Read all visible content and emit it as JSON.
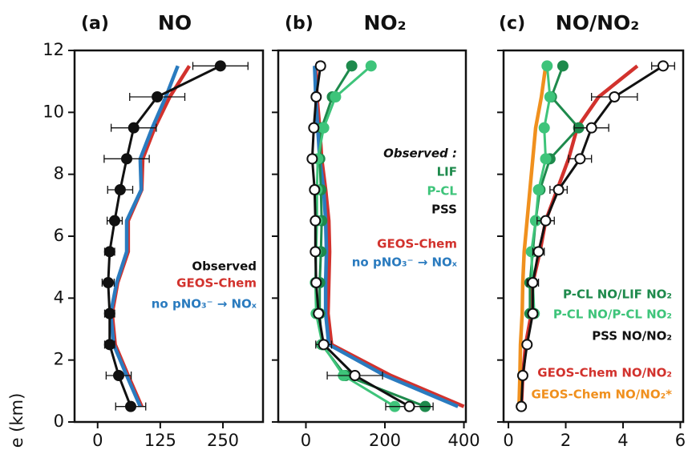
{
  "chart_data": [
    {
      "type": "line",
      "panel_label": "(a)",
      "title": "NO",
      "ylabel": "e (km)",
      "y": [
        0.5,
        1.5,
        2.5,
        3.5,
        4.5,
        5.5,
        6.5,
        7.5,
        8.5,
        9.5,
        10.5,
        11.5
      ],
      "xlim": [
        -46,
        330
      ],
      "xticks": [
        0,
        125,
        250
      ],
      "ylim": [
        0,
        12
      ],
      "yticks": [
        0,
        2,
        4,
        6,
        8,
        10,
        12
      ],
      "ytick_labels": true,
      "series": [
        {
          "name": "Observed",
          "color": "#111111",
          "marker": "filled",
          "values": [
            66,
            42,
            24,
            24,
            21,
            24,
            34,
            45,
            58,
            72,
            119,
            245
          ],
          "errors": [
            30,
            25,
            10,
            10,
            12,
            10,
            15,
            25,
            45,
            45,
            55,
            55
          ]
        },
        {
          "name": "GEOS-Chem",
          "color": "#d2322d",
          "marker": "none",
          "values": [
            88,
            61,
            35,
            29,
            40,
            61,
            61,
            88,
            90,
            114,
            144,
            183
          ]
        },
        {
          "name": "no pNO₃⁻ → NOₓ",
          "color": "#2a7bbf",
          "marker": "none",
          "values": [
            85,
            58,
            32,
            26,
            38,
            58,
            58,
            87,
            85,
            109,
            136,
            160
          ]
        }
      ]
    },
    {
      "type": "line",
      "panel_label": "(b)",
      "title": "NO₂",
      "legend_title": "Observed :",
      "y": [
        0.5,
        1.5,
        2.5,
        3.5,
        4.5,
        5.5,
        6.5,
        7.5,
        8.5,
        9.5,
        10.5,
        11.5
      ],
      "xlim": [
        -70,
        405
      ],
      "xticks": [
        0,
        200,
        400
      ],
      "ylim": [
        0,
        12
      ],
      "yticks": [
        0,
        2,
        4,
        6,
        8,
        10,
        12
      ],
      "ytick_labels": false,
      "series": [
        {
          "name": "LIF",
          "color": "#1e8a4c",
          "marker": "filled",
          "values": [
            302,
            100,
            40,
            35,
            35,
            38,
            40,
            38,
            35,
            40,
            67,
            116
          ]
        },
        {
          "name": "P-CL",
          "color": "#3ec47a",
          "marker": "filled",
          "values": [
            225,
            95,
            42,
            26,
            24,
            26,
            28,
            28,
            30,
            45,
            75,
            165
          ]
        },
        {
          "name": "PSS",
          "color": "#111111",
          "marker": "open",
          "values": [
            262,
            124,
            45,
            32,
            26,
            24,
            24,
            22,
            16,
            20,
            26,
            37
          ],
          "errors": [
            60,
            70,
            20,
            10,
            8,
            8,
            8,
            8,
            6,
            6,
            8,
            10
          ]
        },
        {
          "name": "GEOS-Chem",
          "color": "#d2322d",
          "marker": "none",
          "values": [
            400,
            215,
            65,
            56,
            58,
            60,
            58,
            50,
            40,
            35,
            28,
            25
          ]
        },
        {
          "name": "no pNO₃⁻ → NOₓ",
          "color": "#2a7bbf",
          "marker": "none",
          "values": [
            385,
            200,
            58,
            50,
            50,
            52,
            50,
            45,
            35,
            30,
            25,
            22
          ]
        }
      ]
    },
    {
      "type": "line",
      "panel_label": "(c)",
      "title": "NO/NO₂",
      "y": [
        0.5,
        1.5,
        2.5,
        3.5,
        4.5,
        5.5,
        6.5,
        7.5,
        8.5,
        9.5,
        10.5,
        11.5
      ],
      "xlim": [
        -0.17,
        6.1
      ],
      "xticks": [
        0,
        2,
        4,
        6
      ],
      "ylim": [
        0,
        12
      ],
      "yticks": [
        0,
        2,
        4,
        6,
        8,
        10,
        12
      ],
      "ytick_labels": false,
      "series": [
        {
          "name": "P-CL NO/LIF NO₂",
          "color": "#1e8a4c",
          "marker": "filled",
          "values": [
            null,
            null,
            null,
            0.75,
            0.75,
            0.85,
            0.95,
            1.1,
            1.45,
            2.45,
            1.5,
            1.9
          ]
        },
        {
          "name": "P-CL NO/P-CL NO₂",
          "color": "#3ec47a",
          "marker": "filled",
          "values": [
            null,
            null,
            null,
            0.9,
            0.85,
            0.8,
            0.95,
            1.05,
            1.3,
            1.25,
            1.45,
            1.35
          ]
        },
        {
          "name": "PSS NO/NO₂",
          "color": "#111111",
          "marker": "open",
          "values": [
            0.45,
            0.5,
            0.65,
            0.85,
            0.85,
            1.05,
            1.3,
            1.75,
            2.5,
            2.9,
            3.7,
            5.4
          ],
          "errors": [
            0.1,
            0.1,
            0.1,
            0.15,
            0.2,
            0.2,
            0.3,
            0.3,
            0.4,
            0.6,
            0.8,
            0.4
          ]
        },
        {
          "name": "GEOS-Chem NO/NO₂",
          "color": "#d2322d",
          "marker": "none",
          "values": [
            0.45,
            0.5,
            0.6,
            0.8,
            0.85,
            1.1,
            1.3,
            1.7,
            2.1,
            2.4,
            3.15,
            4.5
          ]
        },
        {
          "name": "GEOS-Chem NO/NO₂*",
          "color": "#f0901e",
          "marker": "none",
          "values": [
            0.37,
            0.4,
            0.42,
            0.48,
            0.5,
            0.55,
            0.65,
            0.75,
            0.85,
            0.95,
            1.15,
            1.3
          ]
        }
      ]
    }
  ]
}
